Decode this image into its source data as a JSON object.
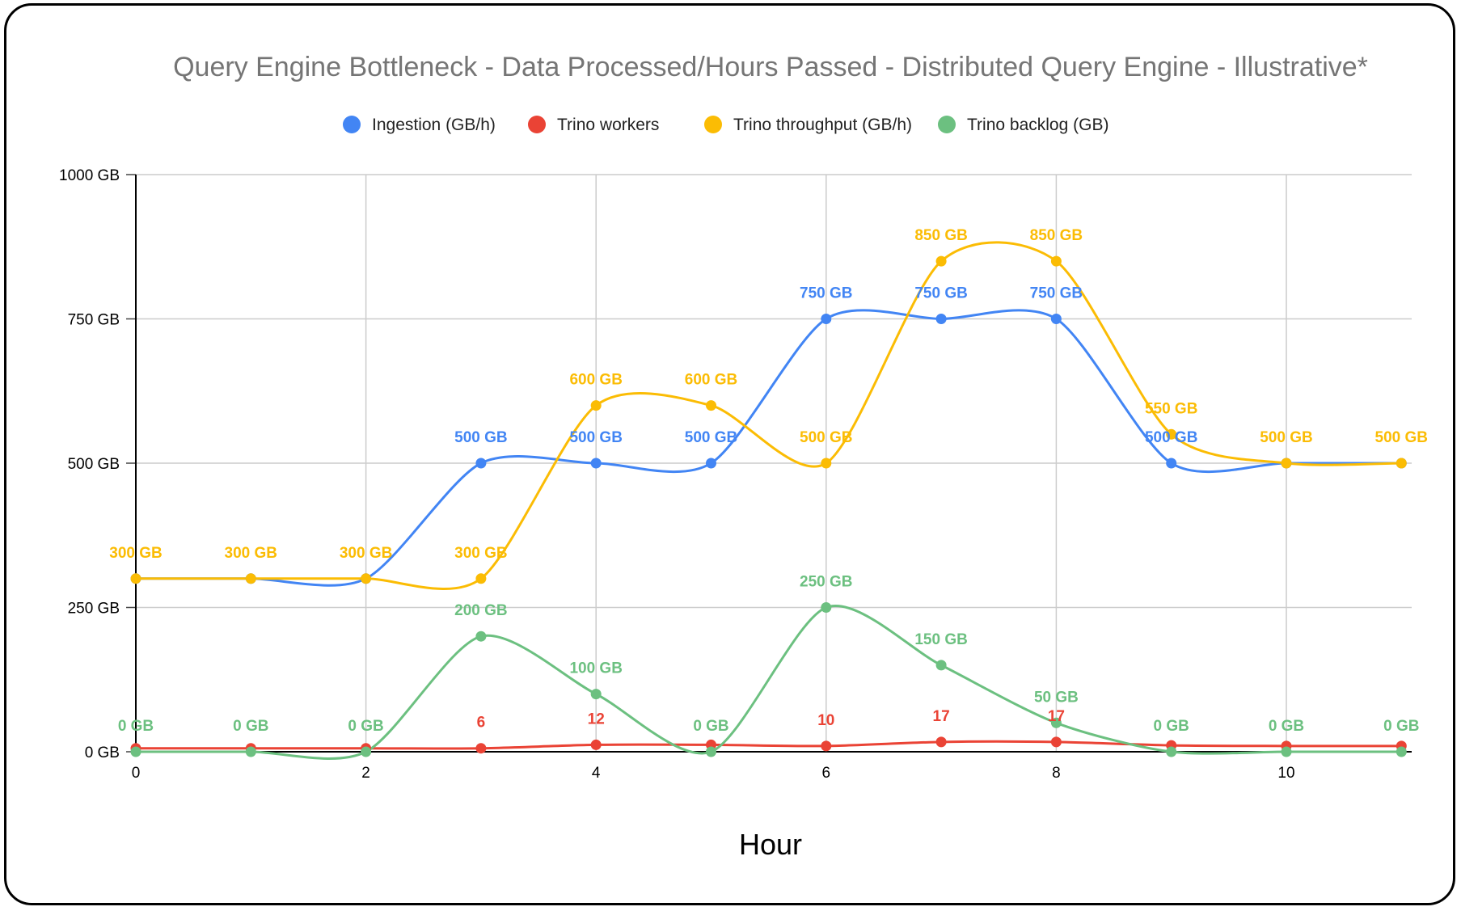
{
  "chart_data": {
    "type": "line",
    "title": "Query Engine Bottleneck - Data Processed/Hours Passed - Distributed Query Engine - Illustrative*",
    "xlabel": "Hour",
    "ylabel": "",
    "x": [
      0,
      1,
      2,
      3,
      4,
      5,
      6,
      7,
      8,
      9,
      10,
      11
    ],
    "xticks": [
      0,
      2,
      4,
      6,
      8,
      10
    ],
    "xlim": [
      0,
      11.1
    ],
    "ylim": [
      0,
      1000
    ],
    "yticks": [
      0,
      250,
      500,
      750,
      1000
    ],
    "ytick_labels": [
      "0 GB",
      "250 GB",
      "500 GB",
      "750 GB",
      "1000 GB"
    ],
    "grid": true,
    "smooth": true,
    "legend_position": "top",
    "series": [
      {
        "name": "Ingestion (GB/h)",
        "color": "#4285F4",
        "values": [
          300,
          300,
          300,
          500,
          500,
          500,
          750,
          750,
          750,
          500,
          500,
          500
        ],
        "labels": [
          "",
          "",
          "",
          "500 GB",
          "500 GB",
          "500 GB",
          "750 GB",
          "750 GB",
          "750 GB",
          "500 GB",
          "",
          ""
        ]
      },
      {
        "name": "Trino workers",
        "color": "#EA4335",
        "values": [
          6,
          6,
          6,
          6,
          12,
          12,
          10,
          17,
          17,
          11,
          10,
          10
        ],
        "labels": [
          "",
          "",
          "",
          "6",
          "12",
          "",
          "10",
          "17",
          "17",
          "",
          "",
          ""
        ]
      },
      {
        "name": "Trino throughput (GB/h)",
        "color": "#FBBC04",
        "values": [
          300,
          300,
          300,
          300,
          600,
          600,
          500,
          850,
          850,
          550,
          500,
          500
        ],
        "labels": [
          "300 GB",
          "300 GB",
          "300 GB",
          "300 GB",
          "600 GB",
          "600 GB",
          "500 GB",
          "850 GB",
          "850 GB",
          "550 GB",
          "500 GB",
          "500 GB"
        ]
      },
      {
        "name": "Trino backlog (GB)",
        "color": "#6CC080",
        "values": [
          0,
          0,
          0,
          200,
          100,
          0,
          250,
          150,
          50,
          0,
          0,
          0
        ],
        "labels": [
          "0 GB",
          "0 GB",
          "0 GB",
          "200 GB",
          "100 GB",
          "0 GB",
          "250 GB",
          "150 GB",
          "50 GB",
          "0 GB",
          "0 GB",
          "0 GB"
        ]
      }
    ]
  }
}
